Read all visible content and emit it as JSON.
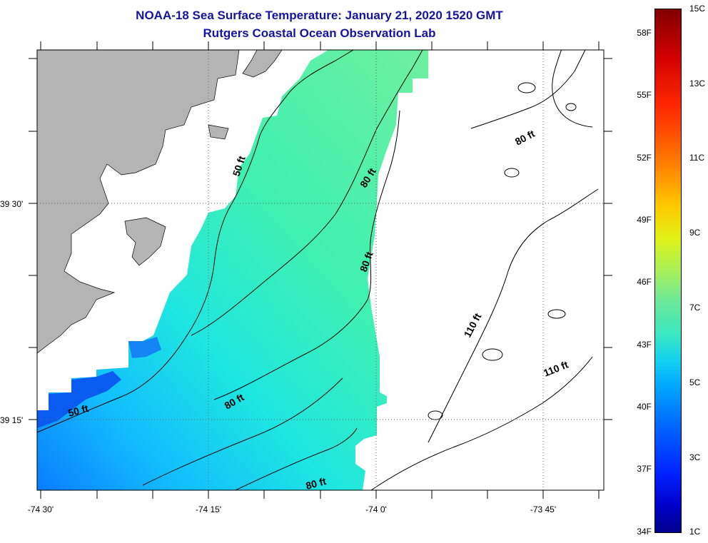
{
  "header": {
    "title": "NOAA-18 Sea Surface Temperature:  January 21, 2020 1520 GMT",
    "subtitle": "Rutgers Coastal Ocean Observation Lab"
  },
  "map": {
    "lat_labels": [
      "39 30'",
      "39 15'"
    ],
    "lon_labels": [
      "-74 30'",
      "-74 15'",
      "-74 0'",
      "-73 45'"
    ],
    "depth_labels": [
      "50 ft",
      "80 ft",
      "80 ft",
      "80 ft",
      "110 ft",
      "110 ft",
      "80 ft",
      "80 ft",
      "50 ft"
    ],
    "colors": {
      "land": "#b4b4b4",
      "contour": "#000000"
    }
  },
  "colorbar": {
    "fahrenheit": [
      "58F",
      "55F",
      "52F",
      "49F",
      "46F",
      "43F",
      "40F",
      "37F",
      "34F"
    ],
    "celsius": [
      "15C",
      "13C",
      "11C",
      "9C",
      "7C",
      "5C",
      "3C",
      "1C"
    ]
  }
}
